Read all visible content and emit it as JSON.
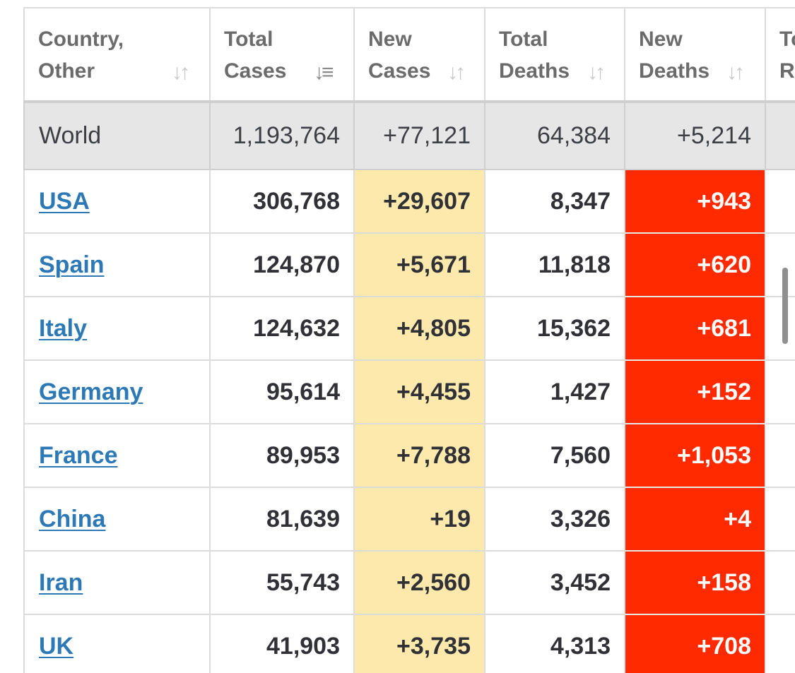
{
  "columns": [
    {
      "label": "Country,\nOther",
      "sort_icon": "sort-arrows-icon"
    },
    {
      "label": "Total\nCases",
      "sort_icon": "sort-desc-icon"
    },
    {
      "label": "New\nCases",
      "sort_icon": "sort-arrows-icon"
    },
    {
      "label": "Total\nDeaths",
      "sort_icon": "sort-arrows-icon"
    },
    {
      "label": "New\nDeaths",
      "sort_icon": "sort-arrows-icon"
    },
    {
      "label": "To\nR",
      "sort_icon": ""
    }
  ],
  "sort_glyphs": {
    "arrows": "↓↑",
    "desc": "↓≡"
  },
  "world": {
    "country": "World",
    "total_cases": "1,193,764",
    "new_cases": "+77,121",
    "total_deaths": "64,384",
    "new_deaths": "+5,214"
  },
  "rows": [
    {
      "country": "USA",
      "total_cases": "306,768",
      "new_cases": "+29,607",
      "total_deaths": "8,347",
      "new_deaths": "+943"
    },
    {
      "country": "Spain",
      "total_cases": "124,870",
      "new_cases": "+5,671",
      "total_deaths": "11,818",
      "new_deaths": "+620"
    },
    {
      "country": "Italy",
      "total_cases": "124,632",
      "new_cases": "+4,805",
      "total_deaths": "15,362",
      "new_deaths": "+681"
    },
    {
      "country": "Germany",
      "total_cases": "95,614",
      "new_cases": "+4,455",
      "total_deaths": "1,427",
      "new_deaths": "+152"
    },
    {
      "country": "France",
      "total_cases": "89,953",
      "new_cases": "+7,788",
      "total_deaths": "7,560",
      "new_deaths": "+1,053"
    },
    {
      "country": "China",
      "total_cases": "81,639",
      "new_cases": "+19",
      "total_deaths": "3,326",
      "new_deaths": "+4"
    },
    {
      "country": "Iran",
      "total_cases": "55,743",
      "new_cases": "+2,560",
      "total_deaths": "3,452",
      "new_deaths": "+158"
    },
    {
      "country": "UK",
      "total_cases": "41,903",
      "new_cases": "+3,735",
      "total_deaths": "4,313",
      "new_deaths": "+708"
    }
  ],
  "colors": {
    "header_text": "#6b6b6b",
    "world_row_bg": "#e6e6e6",
    "new_cases_bg": "#fde9ac",
    "new_deaths_bg": "#ff2a00",
    "link": "#2d79b6",
    "grid": "#dcdcdc"
  }
}
